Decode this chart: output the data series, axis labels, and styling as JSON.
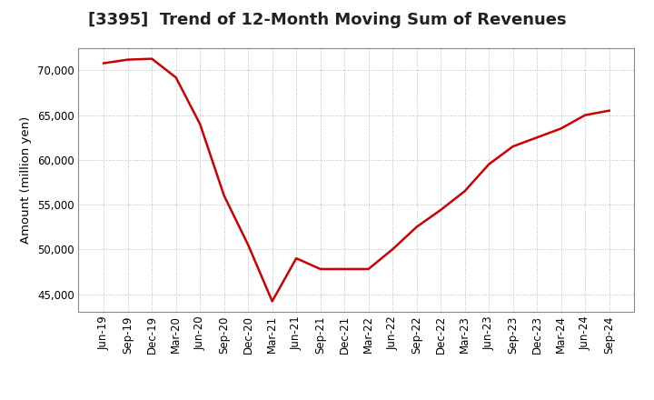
{
  "title": "[3395]  Trend of 12-Month Moving Sum of Revenues",
  "ylabel": "Amount (million yen)",
  "line_color": "#cc0000",
  "background_color": "#ffffff",
  "plot_bg_color": "#ffffff",
  "grid_color": "#b0b0b0",
  "xlabels": [
    "Jun-19",
    "Sep-19",
    "Dec-19",
    "Mar-20",
    "Jun-20",
    "Sep-20",
    "Dec-20",
    "Mar-21",
    "Jun-21",
    "Sep-21",
    "Dec-21",
    "Mar-22",
    "Jun-22",
    "Sep-22",
    "Dec-22",
    "Mar-23",
    "Jun-23",
    "Sep-23",
    "Dec-23",
    "Mar-24",
    "Jun-24",
    "Sep-24"
  ],
  "values": [
    70800,
    71200,
    71300,
    69200,
    64000,
    56000,
    50500,
    44200,
    49000,
    47800,
    47800,
    47800,
    50000,
    52500,
    54400,
    56500,
    59500,
    61500,
    62500,
    63500,
    65000,
    65500
  ],
  "ylim": [
    43000,
    72500
  ],
  "yticks": [
    45000,
    50000,
    55000,
    60000,
    65000,
    70000
  ],
  "title_fontsize": 13,
  "tick_fontsize": 8.5,
  "ylabel_fontsize": 9.5
}
